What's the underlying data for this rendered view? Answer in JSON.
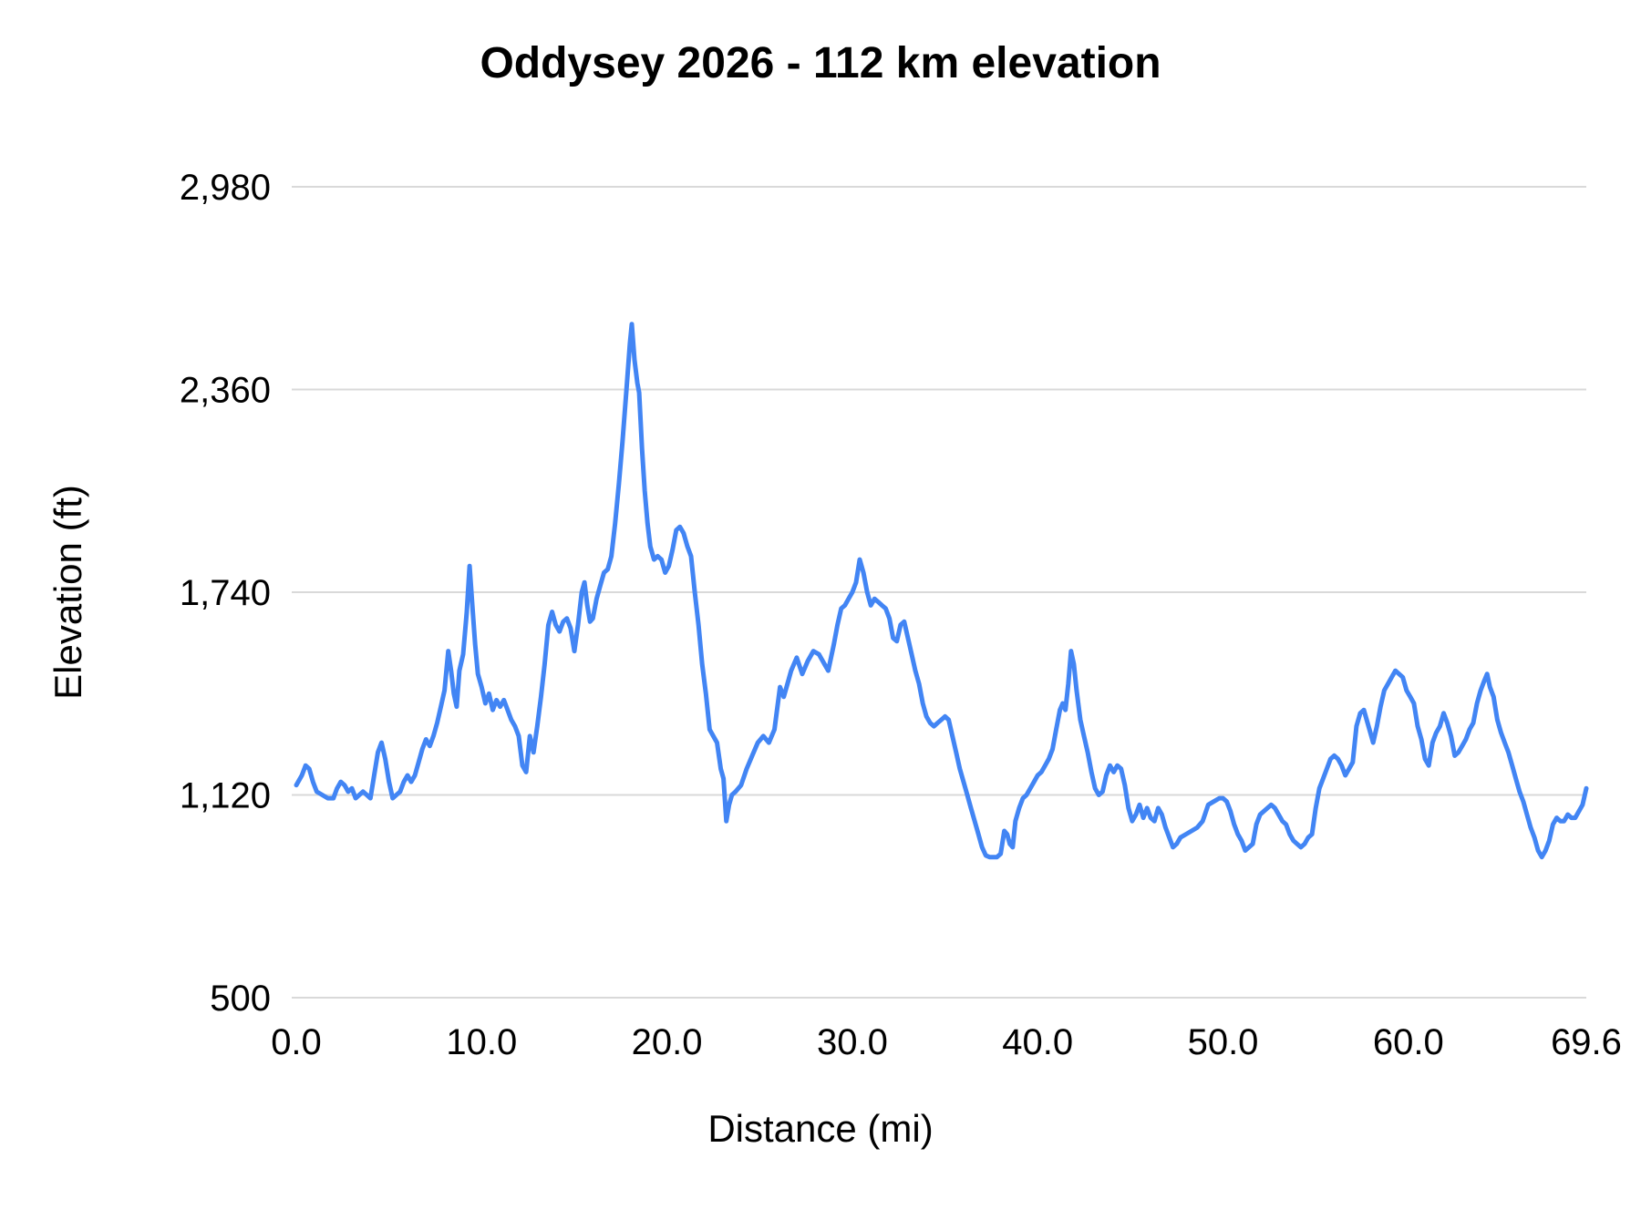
{
  "chart_data": {
    "type": "line",
    "title": "Oddysey 2026 - 112 km elevation",
    "xlabel": "Distance (mi)",
    "ylabel": "Elevation (ft)",
    "xlim": [
      0,
      69.6
    ],
    "ylim": [
      500,
      2980
    ],
    "grid": "horizontal",
    "legend": "none",
    "line_color": "#4285f4",
    "gridline_color": "#d9d9d9",
    "x_ticks": [
      {
        "value": 0,
        "label": "0.0"
      },
      {
        "value": 10,
        "label": "10.0"
      },
      {
        "value": 20,
        "label": "20.0"
      },
      {
        "value": 30,
        "label": "30.0"
      },
      {
        "value": 40,
        "label": "40.0"
      },
      {
        "value": 50,
        "label": "50.0"
      },
      {
        "value": 60,
        "label": "60.0"
      },
      {
        "value": 69.6,
        "label": "69.6"
      }
    ],
    "y_ticks": [
      {
        "value": 500,
        "label": "500"
      },
      {
        "value": 1120,
        "label": "1,120"
      },
      {
        "value": 1740,
        "label": "1,740"
      },
      {
        "value": 2360,
        "label": "2,360"
      },
      {
        "value": 2980,
        "label": "2,980"
      }
    ],
    "series_name": "Elevation",
    "points": [
      [
        0,
        1150
      ],
      [
        0.3,
        1180
      ],
      [
        0.5,
        1210
      ],
      [
        0.7,
        1200
      ],
      [
        0.9,
        1160
      ],
      [
        1.1,
        1130
      ],
      [
        1.4,
        1120
      ],
      [
        1.7,
        1110
      ],
      [
        2,
        1110
      ],
      [
        2.2,
        1140
      ],
      [
        2.4,
        1160
      ],
      [
        2.6,
        1150
      ],
      [
        2.8,
        1130
      ],
      [
        3,
        1140
      ],
      [
        3.2,
        1110
      ],
      [
        3.4,
        1120
      ],
      [
        3.6,
        1130
      ],
      [
        3.8,
        1120
      ],
      [
        4,
        1110
      ],
      [
        4.2,
        1180
      ],
      [
        4.4,
        1250
      ],
      [
        4.6,
        1280
      ],
      [
        4.8,
        1230
      ],
      [
        5,
        1160
      ],
      [
        5.2,
        1110
      ],
      [
        5.4,
        1120
      ],
      [
        5.6,
        1130
      ],
      [
        5.8,
        1160
      ],
      [
        6,
        1180
      ],
      [
        6.2,
        1160
      ],
      [
        6.4,
        1180
      ],
      [
        6.6,
        1220
      ],
      [
        6.8,
        1260
      ],
      [
        7,
        1290
      ],
      [
        7.2,
        1270
      ],
      [
        7.4,
        1300
      ],
      [
        7.6,
        1340
      ],
      [
        7.8,
        1390
      ],
      [
        8,
        1440
      ],
      [
        8.2,
        1560
      ],
      [
        8.35,
        1500
      ],
      [
        8.5,
        1430
      ],
      [
        8.65,
        1390
      ],
      [
        8.8,
        1500
      ],
      [
        9,
        1550
      ],
      [
        9.2,
        1680
      ],
      [
        9.35,
        1820
      ],
      [
        9.5,
        1700
      ],
      [
        9.65,
        1580
      ],
      [
        9.8,
        1490
      ],
      [
        10,
        1450
      ],
      [
        10.2,
        1400
      ],
      [
        10.4,
        1430
      ],
      [
        10.6,
        1380
      ],
      [
        10.8,
        1410
      ],
      [
        11,
        1390
      ],
      [
        11.2,
        1410
      ],
      [
        11.4,
        1380
      ],
      [
        11.6,
        1350
      ],
      [
        11.8,
        1330
      ],
      [
        12,
        1300
      ],
      [
        12.2,
        1210
      ],
      [
        12.4,
        1190
      ],
      [
        12.6,
        1300
      ],
      [
        12.8,
        1250
      ],
      [
        13,
        1330
      ],
      [
        13.2,
        1420
      ],
      [
        13.4,
        1520
      ],
      [
        13.6,
        1640
      ],
      [
        13.8,
        1680
      ],
      [
        14,
        1640
      ],
      [
        14.2,
        1620
      ],
      [
        14.4,
        1650
      ],
      [
        14.6,
        1660
      ],
      [
        14.8,
        1630
      ],
      [
        15,
        1560
      ],
      [
        15.2,
        1640
      ],
      [
        15.4,
        1740
      ],
      [
        15.55,
        1770
      ],
      [
        15.7,
        1700
      ],
      [
        15.85,
        1650
      ],
      [
        16,
        1660
      ],
      [
        16.2,
        1720
      ],
      [
        16.4,
        1760
      ],
      [
        16.6,
        1800
      ],
      [
        16.8,
        1810
      ],
      [
        17,
        1850
      ],
      [
        17.2,
        1950
      ],
      [
        17.4,
        2070
      ],
      [
        17.6,
        2200
      ],
      [
        17.8,
        2350
      ],
      [
        18,
        2500
      ],
      [
        18.1,
        2560
      ],
      [
        18.25,
        2450
      ],
      [
        18.4,
        2380
      ],
      [
        18.5,
        2350
      ],
      [
        18.65,
        2180
      ],
      [
        18.8,
        2050
      ],
      [
        18.95,
        1950
      ],
      [
        19.1,
        1880
      ],
      [
        19.3,
        1840
      ],
      [
        19.5,
        1850
      ],
      [
        19.7,
        1840
      ],
      [
        19.9,
        1800
      ],
      [
        20.1,
        1820
      ],
      [
        20.3,
        1870
      ],
      [
        20.5,
        1930
      ],
      [
        20.7,
        1940
      ],
      [
        20.9,
        1920
      ],
      [
        21.1,
        1880
      ],
      [
        21.3,
        1850
      ],
      [
        21.5,
        1740
      ],
      [
        21.7,
        1640
      ],
      [
        21.9,
        1520
      ],
      [
        22.1,
        1430
      ],
      [
        22.3,
        1320
      ],
      [
        22.5,
        1300
      ],
      [
        22.7,
        1280
      ],
      [
        22.9,
        1200
      ],
      [
        23.05,
        1170
      ],
      [
        23.2,
        1040
      ],
      [
        23.35,
        1090
      ],
      [
        23.5,
        1120
      ],
      [
        23.7,
        1130
      ],
      [
        24,
        1150
      ],
      [
        24.3,
        1200
      ],
      [
        24.6,
        1240
      ],
      [
        24.9,
        1280
      ],
      [
        25.2,
        1300
      ],
      [
        25.5,
        1280
      ],
      [
        25.8,
        1320
      ],
      [
        26.1,
        1450
      ],
      [
        26.3,
        1420
      ],
      [
        26.5,
        1460
      ],
      [
        26.7,
        1500
      ],
      [
        27,
        1540
      ],
      [
        27.3,
        1490
      ],
      [
        27.6,
        1530
      ],
      [
        27.9,
        1560
      ],
      [
        28.2,
        1550
      ],
      [
        28.5,
        1520
      ],
      [
        28.7,
        1500
      ],
      [
        29,
        1580
      ],
      [
        29.2,
        1640
      ],
      [
        29.4,
        1690
      ],
      [
        29.6,
        1700
      ],
      [
        29.8,
        1720
      ],
      [
        30,
        1740
      ],
      [
        30.2,
        1770
      ],
      [
        30.4,
        1840
      ],
      [
        30.6,
        1800
      ],
      [
        30.8,
        1740
      ],
      [
        31,
        1700
      ],
      [
        31.2,
        1720
      ],
      [
        31.4,
        1710
      ],
      [
        31.6,
        1700
      ],
      [
        31.8,
        1690
      ],
      [
        32,
        1660
      ],
      [
        32.2,
        1600
      ],
      [
        32.4,
        1590
      ],
      [
        32.6,
        1640
      ],
      [
        32.8,
        1650
      ],
      [
        33,
        1600
      ],
      [
        33.2,
        1550
      ],
      [
        33.4,
        1500
      ],
      [
        33.6,
        1460
      ],
      [
        33.8,
        1400
      ],
      [
        34,
        1360
      ],
      [
        34.2,
        1340
      ],
      [
        34.4,
        1330
      ],
      [
        34.6,
        1340
      ],
      [
        34.8,
        1350
      ],
      [
        35,
        1360
      ],
      [
        35.2,
        1350
      ],
      [
        35.4,
        1300
      ],
      [
        35.6,
        1250
      ],
      [
        35.8,
        1200
      ],
      [
        36,
        1160
      ],
      [
        36.2,
        1120
      ],
      [
        36.4,
        1080
      ],
      [
        36.6,
        1040
      ],
      [
        36.8,
        1000
      ],
      [
        37,
        960
      ],
      [
        37.2,
        935
      ],
      [
        37.4,
        930
      ],
      [
        37.6,
        930
      ],
      [
        37.8,
        930
      ],
      [
        38,
        940
      ],
      [
        38.2,
        1010
      ],
      [
        38.35,
        1000
      ],
      [
        38.5,
        970
      ],
      [
        38.65,
        960
      ],
      [
        38.8,
        1040
      ],
      [
        39,
        1080
      ],
      [
        39.2,
        1110
      ],
      [
        39.4,
        1120
      ],
      [
        39.6,
        1140
      ],
      [
        39.8,
        1160
      ],
      [
        40,
        1180
      ],
      [
        40.2,
        1190
      ],
      [
        40.4,
        1210
      ],
      [
        40.6,
        1230
      ],
      [
        40.8,
        1260
      ],
      [
        41,
        1320
      ],
      [
        41.2,
        1380
      ],
      [
        41.35,
        1400
      ],
      [
        41.5,
        1380
      ],
      [
        41.65,
        1460
      ],
      [
        41.8,
        1560
      ],
      [
        41.95,
        1520
      ],
      [
        42.1,
        1440
      ],
      [
        42.3,
        1350
      ],
      [
        42.5,
        1300
      ],
      [
        42.7,
        1250
      ],
      [
        42.9,
        1190
      ],
      [
        43.1,
        1140
      ],
      [
        43.3,
        1120
      ],
      [
        43.5,
        1130
      ],
      [
        43.7,
        1180
      ],
      [
        43.9,
        1210
      ],
      [
        44.1,
        1190
      ],
      [
        44.3,
        1210
      ],
      [
        44.5,
        1200
      ],
      [
        44.7,
        1150
      ],
      [
        44.9,
        1080
      ],
      [
        45.1,
        1040
      ],
      [
        45.3,
        1060
      ],
      [
        45.5,
        1090
      ],
      [
        45.7,
        1050
      ],
      [
        45.9,
        1080
      ],
      [
        46.1,
        1050
      ],
      [
        46.3,
        1040
      ],
      [
        46.5,
        1080
      ],
      [
        46.7,
        1060
      ],
      [
        46.9,
        1020
      ],
      [
        47.1,
        990
      ],
      [
        47.3,
        960
      ],
      [
        47.5,
        970
      ],
      [
        47.7,
        990
      ],
      [
        48,
        1000
      ],
      [
        48.3,
        1010
      ],
      [
        48.6,
        1020
      ],
      [
        48.9,
        1040
      ],
      [
        49.2,
        1090
      ],
      [
        49.5,
        1100
      ],
      [
        49.8,
        1110
      ],
      [
        50,
        1110
      ],
      [
        50.2,
        1100
      ],
      [
        50.4,
        1070
      ],
      [
        50.6,
        1030
      ],
      [
        50.8,
        1000
      ],
      [
        51,
        980
      ],
      [
        51.2,
        950
      ],
      [
        51.4,
        960
      ],
      [
        51.6,
        970
      ],
      [
        51.8,
        1030
      ],
      [
        52,
        1060
      ],
      [
        52.2,
        1070
      ],
      [
        52.4,
        1080
      ],
      [
        52.6,
        1090
      ],
      [
        52.8,
        1080
      ],
      [
        53,
        1060
      ],
      [
        53.2,
        1040
      ],
      [
        53.4,
        1030
      ],
      [
        53.6,
        1000
      ],
      [
        53.8,
        980
      ],
      [
        54,
        970
      ],
      [
        54.2,
        960
      ],
      [
        54.4,
        970
      ],
      [
        54.6,
        990
      ],
      [
        54.8,
        1000
      ],
      [
        55,
        1080
      ],
      [
        55.2,
        1140
      ],
      [
        55.4,
        1170
      ],
      [
        55.6,
        1200
      ],
      [
        55.8,
        1230
      ],
      [
        56,
        1240
      ],
      [
        56.2,
        1230
      ],
      [
        56.4,
        1210
      ],
      [
        56.6,
        1180
      ],
      [
        56.8,
        1200
      ],
      [
        57,
        1220
      ],
      [
        57.2,
        1330
      ],
      [
        57.4,
        1370
      ],
      [
        57.6,
        1380
      ],
      [
        57.8,
        1340
      ],
      [
        58,
        1300
      ],
      [
        58.1,
        1280
      ],
      [
        58.3,
        1330
      ],
      [
        58.5,
        1390
      ],
      [
        58.7,
        1440
      ],
      [
        58.9,
        1460
      ],
      [
        59.1,
        1480
      ],
      [
        59.3,
        1500
      ],
      [
        59.5,
        1490
      ],
      [
        59.7,
        1480
      ],
      [
        59.9,
        1440
      ],
      [
        60.1,
        1420
      ],
      [
        60.3,
        1400
      ],
      [
        60.5,
        1330
      ],
      [
        60.7,
        1290
      ],
      [
        60.9,
        1230
      ],
      [
        61.1,
        1210
      ],
      [
        61.3,
        1280
      ],
      [
        61.5,
        1310
      ],
      [
        61.7,
        1330
      ],
      [
        61.9,
        1370
      ],
      [
        62.1,
        1340
      ],
      [
        62.3,
        1300
      ],
      [
        62.5,
        1240
      ],
      [
        62.7,
        1250
      ],
      [
        62.9,
        1270
      ],
      [
        63.1,
        1290
      ],
      [
        63.3,
        1320
      ],
      [
        63.5,
        1340
      ],
      [
        63.7,
        1400
      ],
      [
        63.9,
        1440
      ],
      [
        64.1,
        1470
      ],
      [
        64.25,
        1490
      ],
      [
        64.4,
        1450
      ],
      [
        64.6,
        1420
      ],
      [
        64.8,
        1350
      ],
      [
        65,
        1310
      ],
      [
        65.2,
        1280
      ],
      [
        65.4,
        1250
      ],
      [
        65.6,
        1210
      ],
      [
        65.8,
        1170
      ],
      [
        66,
        1130
      ],
      [
        66.2,
        1100
      ],
      [
        66.4,
        1060
      ],
      [
        66.6,
        1020
      ],
      [
        66.8,
        990
      ],
      [
        67,
        950
      ],
      [
        67.2,
        930
      ],
      [
        67.4,
        950
      ],
      [
        67.6,
        980
      ],
      [
        67.8,
        1030
      ],
      [
        68,
        1050
      ],
      [
        68.2,
        1040
      ],
      [
        68.4,
        1040
      ],
      [
        68.6,
        1060
      ],
      [
        68.8,
        1050
      ],
      [
        69,
        1050
      ],
      [
        69.2,
        1070
      ],
      [
        69.4,
        1090
      ],
      [
        69.6,
        1140
      ]
    ]
  }
}
